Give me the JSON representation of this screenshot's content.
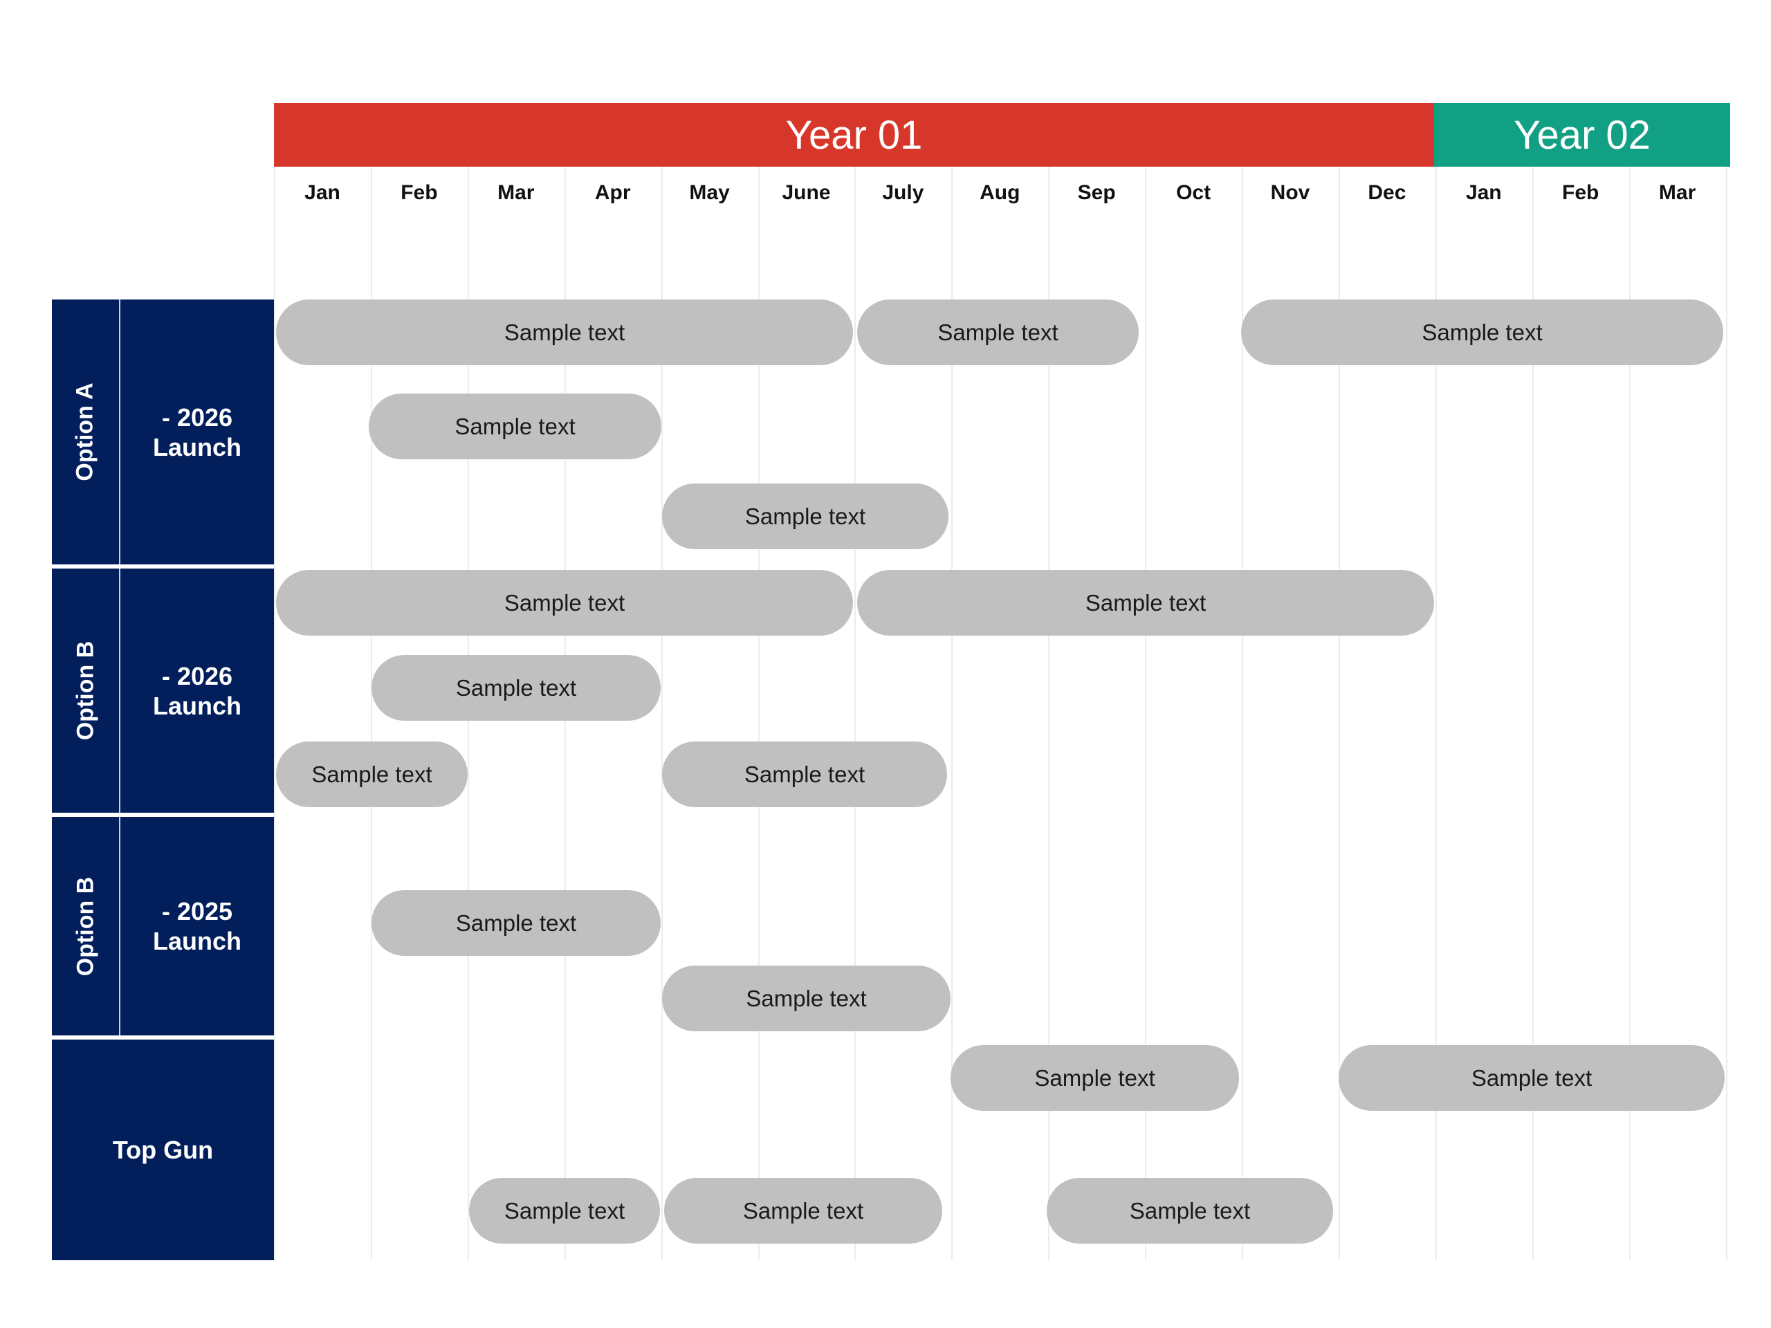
{
  "header": {
    "year1": "Year 01",
    "year2": "Year 02",
    "months": [
      "Jan",
      "Feb",
      "Mar",
      "Apr",
      "May",
      "June",
      "July",
      "Aug",
      "Sep",
      "Oct",
      "Nov",
      "Dec",
      "Jan",
      "Feb",
      "Mar"
    ]
  },
  "colors": {
    "year1": "#d7372b",
    "year2": "#12a085",
    "panel": "#021f5c",
    "bar": "#c0c0c0"
  },
  "groups": [
    {
      "option": "Option A",
      "label": "- 2026\nLaunch"
    },
    {
      "option": "Option B",
      "label": "- 2026\nLaunch"
    },
    {
      "option": "Option B",
      "label": "- 2025\nLaunch"
    },
    {
      "label": "Top Gun"
    }
  ],
  "bars": [
    "Sample text",
    "Sample text",
    "Sample text",
    "Sample text",
    "Sample text",
    "Sample text",
    "Sample text",
    "Sample text",
    "Sample text",
    "Sample text",
    "Sample text",
    "Sample text",
    "Sample text",
    "Sample text",
    "Sample text",
    "Sample text",
    "Sample text"
  ]
}
